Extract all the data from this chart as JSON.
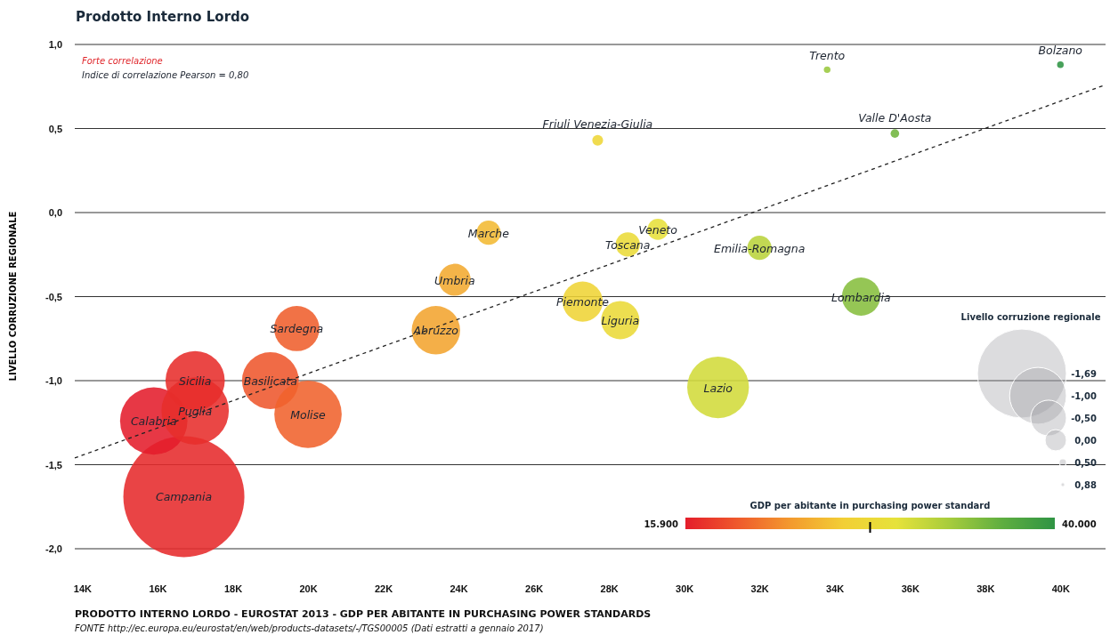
{
  "chart_data": {
    "type": "bubble",
    "title": "Prodotto Interno Lordo",
    "ylabel": "LIVELLO CORRUZIONE REGIONALE",
    "clabel": "GDP per abitante in purchasing power standard",
    "legend_title": "Livello corruzione regionale",
    "xlim": [
      13.8,
      41.2
    ],
    "ylim": [
      -2.0,
      1.0
    ],
    "xticks": [
      {
        "value": 14,
        "label": "14K"
      },
      {
        "value": 16,
        "label": "16K"
      },
      {
        "value": 18,
        "label": "18K"
      },
      {
        "value": 20,
        "label": "20K"
      },
      {
        "value": 22,
        "label": "22K"
      },
      {
        "value": 24,
        "label": "24K"
      },
      {
        "value": 26,
        "label": "26K"
      },
      {
        "value": 28,
        "label": "28K"
      },
      {
        "value": 30,
        "label": "30K"
      },
      {
        "value": 32,
        "label": "32K"
      },
      {
        "value": 34,
        "label": "34K"
      },
      {
        "value": 36,
        "label": "36K"
      },
      {
        "value": 38,
        "label": "38K"
      },
      {
        "value": 40,
        "label": "40K"
      }
    ],
    "yticks": [
      {
        "value": 1.0,
        "label": "1,0"
      },
      {
        "value": 0.5,
        "label": "0,5"
      },
      {
        "value": 0.0,
        "label": "0,0"
      },
      {
        "value": -0.5,
        "label": "-0,5"
      },
      {
        "value": -1.0,
        "label": "-1,0"
      },
      {
        "value": -1.5,
        "label": "-1,5"
      },
      {
        "value": -2.0,
        "label": "-2,0"
      }
    ],
    "grid": "y",
    "size_legend": [
      {
        "value": 0.54,
        "label": "-1,69"
      },
      {
        "value": 0.22,
        "label": "-1,00"
      },
      {
        "value": 0.087,
        "label": "-0,50"
      },
      {
        "value": 0.031,
        "label": "0,00"
      },
      {
        "value": 0.0035,
        "label": "0,50"
      },
      {
        "value": 0.001,
        "label": "0,88"
      }
    ],
    "series": [
      {
        "x": [
          16.7,
          15.9,
          17.0,
          17.0,
          19.0,
          20.0,
          19.7,
          23.4,
          23.9,
          24.8,
          27.3,
          28.3,
          28.5,
          29.3,
          32.0,
          34.7,
          30.9,
          27.7,
          35.6,
          33.8,
          40.0
        ],
        "values": [
          -1.69,
          -1.24,
          -1.18,
          -1.0,
          -1.0,
          -1.2,
          -0.69,
          -0.7,
          -0.4,
          -0.12,
          -0.53,
          -0.64,
          -0.19,
          -0.1,
          -0.21,
          -0.5,
          -1.04,
          0.43,
          0.47,
          0.85,
          0.88
        ],
        "sizes": [
          1,
          0.31,
          0.31,
          0.24,
          0.22,
          0.31,
          0.14,
          0.16,
          0.07,
          0.04,
          0.11,
          0.1,
          0.04,
          0.03,
          0.04,
          0.1,
          0.26,
          0.008,
          0.005,
          0.003,
          0.003
        ],
        "colors": [
          "#e62a2b",
          "#e41d2b",
          "#e72e2b",
          "#e72e2b",
          "#ee562c",
          "#f0622c",
          "#ef5e2c",
          "#f3a42f",
          "#f3aa30",
          "#f2b932",
          "#efd436",
          "#ebda38",
          "#eadb38",
          "#e7e03a",
          "#b9d33b",
          "#86be3e",
          "#d1db3a",
          "#eed637",
          "#71b53f",
          "#9ac83d",
          "#2f9444"
        ]
      },
      {
        "type": "line",
        "x": [
          13.8,
          41.2
        ],
        "values": [
          -1.46,
          0.76
        ],
        "color": "#222222",
        "line_style": "dashed"
      }
    ],
    "annotations": [
      "Forte correlazione",
      "Indice di correlazione Pearson = 0,80",
      "PRODOTTO INTERNO LORDO - EUROSTAT 2013 - GDP PER ABITANTE IN PURCHASING POWER STANDARDS",
      "FONTE http://ec.europa.eu/eurostat/en/web/products-datasets/-/TGS00005 (Dati estratti a gennaio 2017)",
      "15.900",
      "40.000",
      {
        "text": "Campania",
        "x": 16.7,
        "y": -1.69
      },
      {
        "text": "Calabria",
        "x": 15.9,
        "y": -1.24
      },
      {
        "text": "Puglia",
        "x": 17.0,
        "y": -1.18
      },
      {
        "text": "Sicilia",
        "x": 17.0,
        "y": -1.0
      },
      {
        "text": "Basilicata",
        "x": 19.0,
        "y": -1.0
      },
      {
        "text": "Molise",
        "x": 20.0,
        "y": -1.2
      },
      {
        "text": "Sardegna",
        "x": 19.7,
        "y": -0.69
      },
      {
        "text": "Abruzzo",
        "x": 23.4,
        "y": -0.7
      },
      {
        "text": "Umbria",
        "x": 23.9,
        "y": -0.4
      },
      {
        "text": "Marche",
        "x": 24.8,
        "y": -0.12
      },
      {
        "text": "Piemonte",
        "x": 27.3,
        "y": -0.53
      },
      {
        "text": "Liguria",
        "x": 28.3,
        "y": -0.64
      },
      {
        "text": "Toscana",
        "x": 28.5,
        "y": -0.19
      },
      {
        "text": "Veneto",
        "x": 29.3,
        "y": -0.1
      },
      {
        "text": "Emilia-Romagna",
        "x": 32.0,
        "y": -0.21
      },
      {
        "text": "Lombardia",
        "x": 34.7,
        "y": -0.5
      },
      {
        "text": "Lazio",
        "x": 30.9,
        "y": -1.04
      },
      {
        "text": "Friuli Venezia-Giulia",
        "x": 27.7,
        "y": 0.43
      },
      {
        "text": "Valle D'Aosta",
        "x": 35.6,
        "y": 0.47
      },
      {
        "text": "Trento",
        "x": 33.8,
        "y": 0.85
      },
      {
        "text": "Bolzano",
        "x": 40.0,
        "y": 0.88
      }
    ]
  }
}
